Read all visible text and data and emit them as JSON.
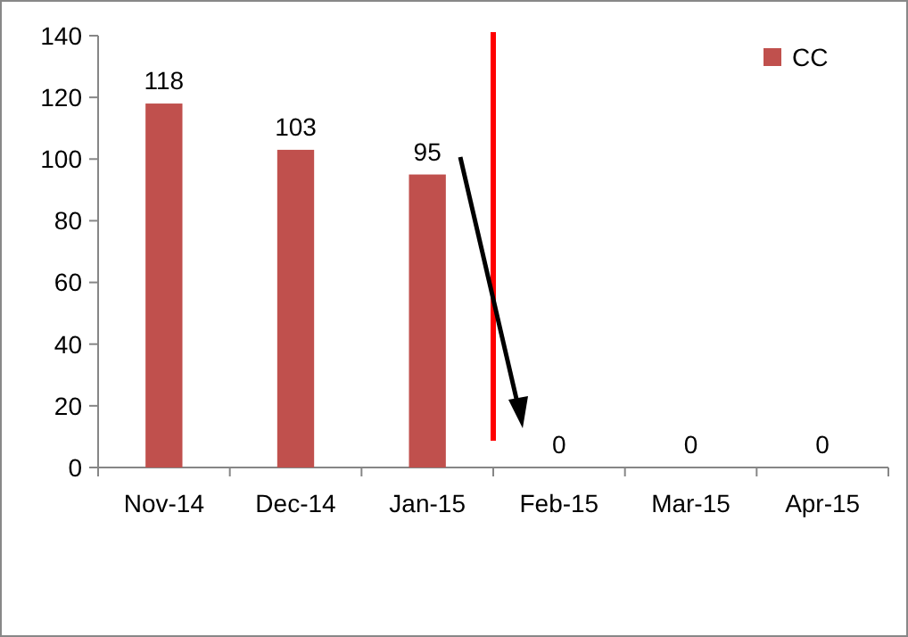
{
  "chart_data": {
    "type": "bar",
    "categories": [
      "Nov-14",
      "Dec-14",
      "Jan-15",
      "Feb-15",
      "Mar-15",
      "Apr-15"
    ],
    "series": [
      {
        "name": "CC",
        "color": "#c0504d",
        "values": [
          118,
          103,
          95,
          0,
          0,
          0
        ]
      }
    ],
    "ylim": [
      0,
      140
    ],
    "yticks": [
      0,
      20,
      40,
      60,
      80,
      100,
      120,
      140
    ],
    "grid": false,
    "legend": "top right",
    "data_labels": true
  }
}
